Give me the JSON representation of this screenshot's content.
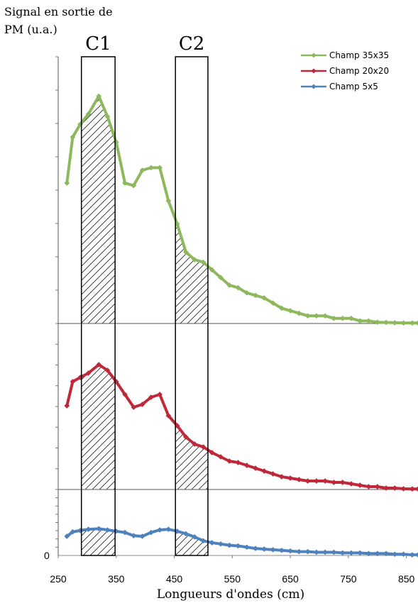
{
  "chart_data": {
    "type": "line",
    "ylabel_lines": [
      "Signal en sortie de",
      "PM (u.a.)"
    ],
    "xlabel": "Longueurs d'ondes (cm)",
    "xlim": [
      250,
      870
    ],
    "x_ticks": [
      250,
      350,
      450,
      550,
      650,
      750,
      850
    ],
    "x_tick_labels": [
      "250",
      "350",
      "450",
      "550",
      "650",
      "750",
      "850"
    ],
    "y_zero_label": "0",
    "bands": [
      {
        "label": "C1",
        "x_start": 290,
        "x_end": 348,
        "hatched": true
      },
      {
        "label": "C2",
        "x_start": 452,
        "x_end": 508,
        "hatched": true
      }
    ],
    "series": [
      {
        "name": "Champ 35x35",
        "color": "#8db85c",
        "x": [
          265,
          275,
          288,
          302,
          320,
          335,
          350,
          365,
          380,
          395,
          410,
          425,
          440,
          455,
          470,
          485,
          500,
          515,
          530,
          545,
          560,
          575,
          590,
          605,
          620,
          635,
          650,
          665,
          680,
          695,
          710,
          725,
          740,
          755,
          770,
          785,
          800,
          815,
          830,
          845,
          860,
          870
        ],
        "values": [
          0.55,
          0.73,
          0.78,
          0.82,
          0.89,
          0.81,
          0.71,
          0.55,
          0.54,
          0.6,
          0.61,
          0.61,
          0.48,
          0.39,
          0.28,
          0.25,
          0.24,
          0.21,
          0.18,
          0.15,
          0.14,
          0.12,
          0.11,
          0.1,
          0.08,
          0.06,
          0.05,
          0.04,
          0.03,
          0.03,
          0.03,
          0.02,
          0.02,
          0.02,
          0.01,
          0.01,
          0.005,
          0.004,
          0.003,
          0.002,
          0.002,
          0.002
        ]
      },
      {
        "name": "Champ 20x20",
        "color": "#c0283a",
        "x": [
          265,
          275,
          288,
          302,
          320,
          335,
          350,
          365,
          380,
          395,
          410,
          425,
          440,
          455,
          470,
          485,
          500,
          515,
          530,
          545,
          560,
          575,
          590,
          605,
          620,
          635,
          650,
          665,
          680,
          695,
          710,
          725,
          740,
          755,
          770,
          785,
          800,
          815,
          830,
          845,
          860,
          870
        ],
        "values": [
          0.59,
          0.76,
          0.79,
          0.82,
          0.88,
          0.84,
          0.76,
          0.67,
          0.58,
          0.6,
          0.65,
          0.67,
          0.52,
          0.45,
          0.37,
          0.32,
          0.3,
          0.26,
          0.23,
          0.2,
          0.19,
          0.17,
          0.15,
          0.13,
          0.11,
          0.09,
          0.08,
          0.07,
          0.06,
          0.06,
          0.06,
          0.05,
          0.05,
          0.04,
          0.03,
          0.02,
          0.02,
          0.01,
          0.01,
          0.005,
          0.004,
          0.004
        ]
      },
      {
        "name": "Champ 5x5",
        "color": "#4f81bd",
        "x": [
          265,
          275,
          288,
          302,
          320,
          335,
          350,
          365,
          380,
          395,
          410,
          425,
          440,
          455,
          470,
          485,
          500,
          515,
          530,
          545,
          560,
          575,
          590,
          605,
          620,
          635,
          650,
          665,
          680,
          695,
          710,
          725,
          740,
          755,
          770,
          785,
          800,
          815,
          830,
          845,
          860,
          870
        ],
        "values": [
          0.3,
          0.37,
          0.39,
          0.41,
          0.42,
          0.4,
          0.38,
          0.36,
          0.31,
          0.3,
          0.36,
          0.4,
          0.41,
          0.38,
          0.34,
          0.29,
          0.23,
          0.2,
          0.18,
          0.16,
          0.15,
          0.13,
          0.11,
          0.1,
          0.09,
          0.08,
          0.07,
          0.06,
          0.06,
          0.05,
          0.05,
          0.05,
          0.04,
          0.04,
          0.04,
          0.03,
          0.03,
          0.03,
          0.02,
          0.02,
          0.01,
          0.01
        ]
      }
    ],
    "legend_position": "top-right"
  }
}
